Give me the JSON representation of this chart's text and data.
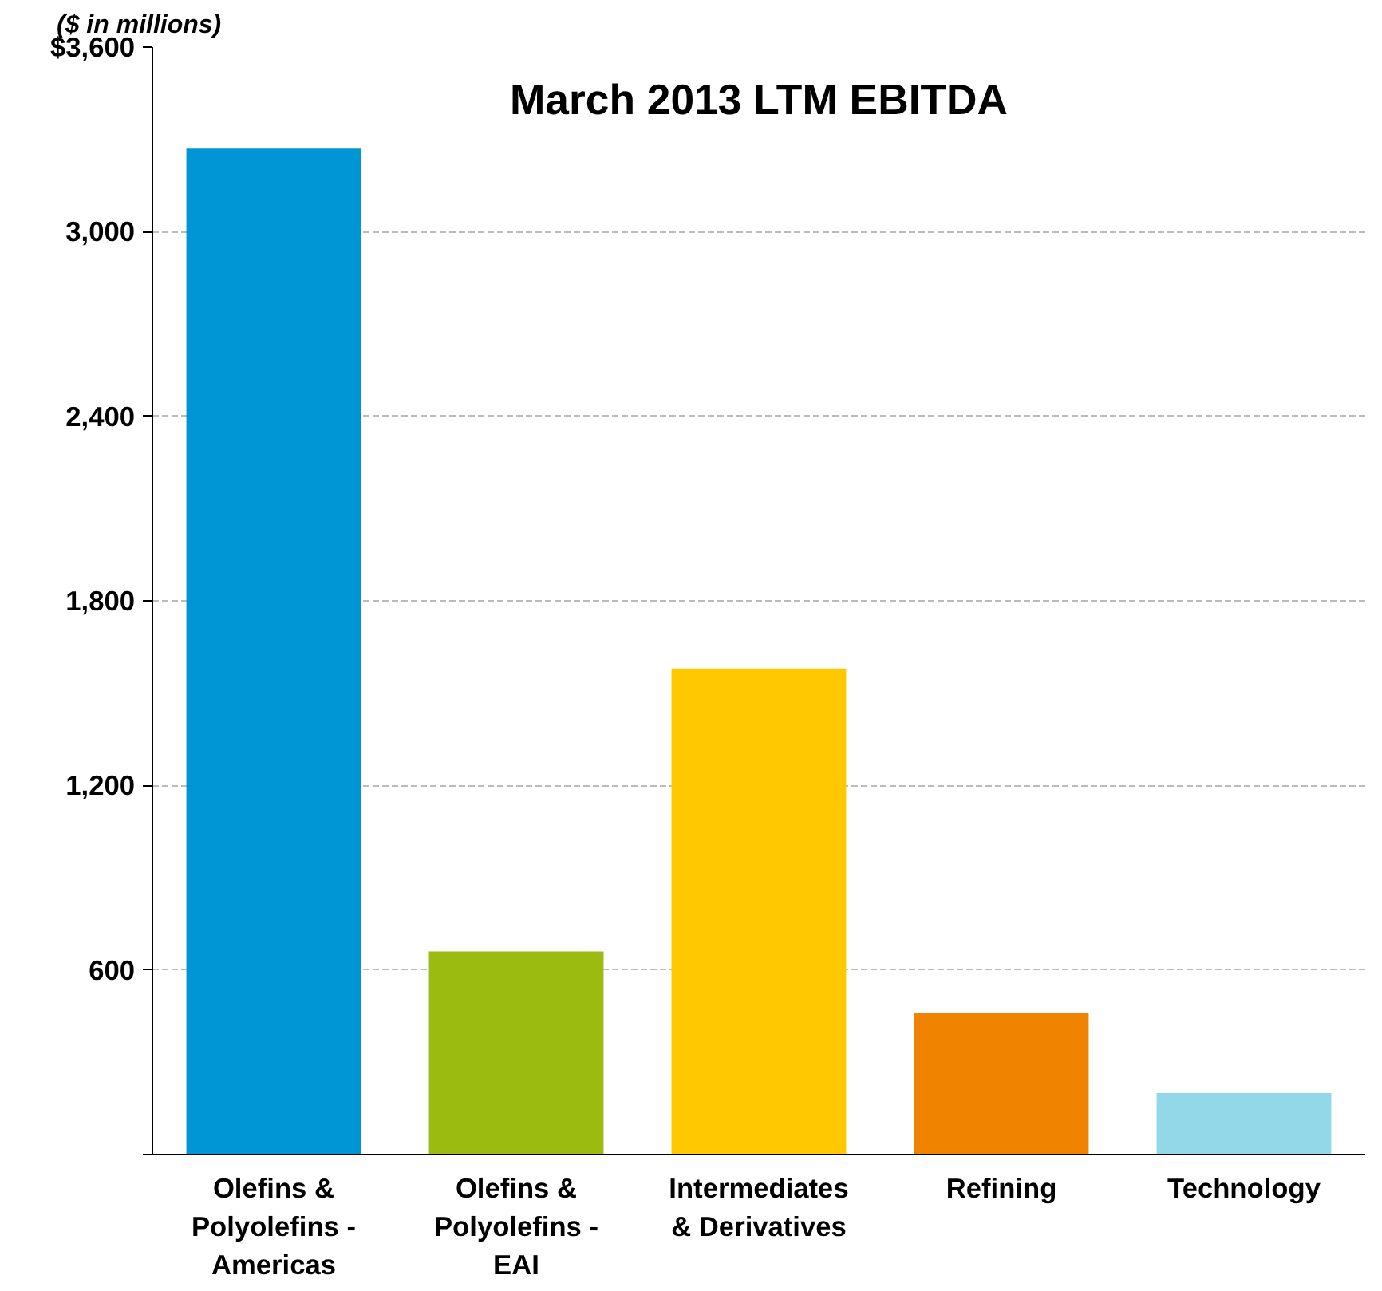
{
  "chart_data": {
    "type": "bar",
    "title": "March 2013 LTM EBITDA",
    "annotations": [
      "($ in millions)"
    ],
    "categories": [
      "Olefins & Polyolefins - Americas",
      "Olefins & Polyolefins - EAI",
      "Intermediates & Derivatives",
      "Refining",
      "Technology"
    ],
    "values": [
      3270,
      660,
      1580,
      460,
      200
    ],
    "colors": [
      "#0096d6",
      "#9bbb11",
      "#ffc800",
      "#f08300",
      "#93d8e8"
    ],
    "ylim": [
      0,
      3600
    ],
    "yticks": [
      {
        "value": 0,
        "label": null
      },
      600,
      {
        "value": 1200,
        "label": "1,200"
      },
      {
        "value": 1800,
        "label": "1,800"
      },
      {
        "value": 2400,
        "label": "2,400"
      },
      {
        "value": 3000,
        "label": "3,000"
      },
      {
        "value": 3600,
        "label": "$3,600"
      }
    ],
    "grid": "y"
  }
}
